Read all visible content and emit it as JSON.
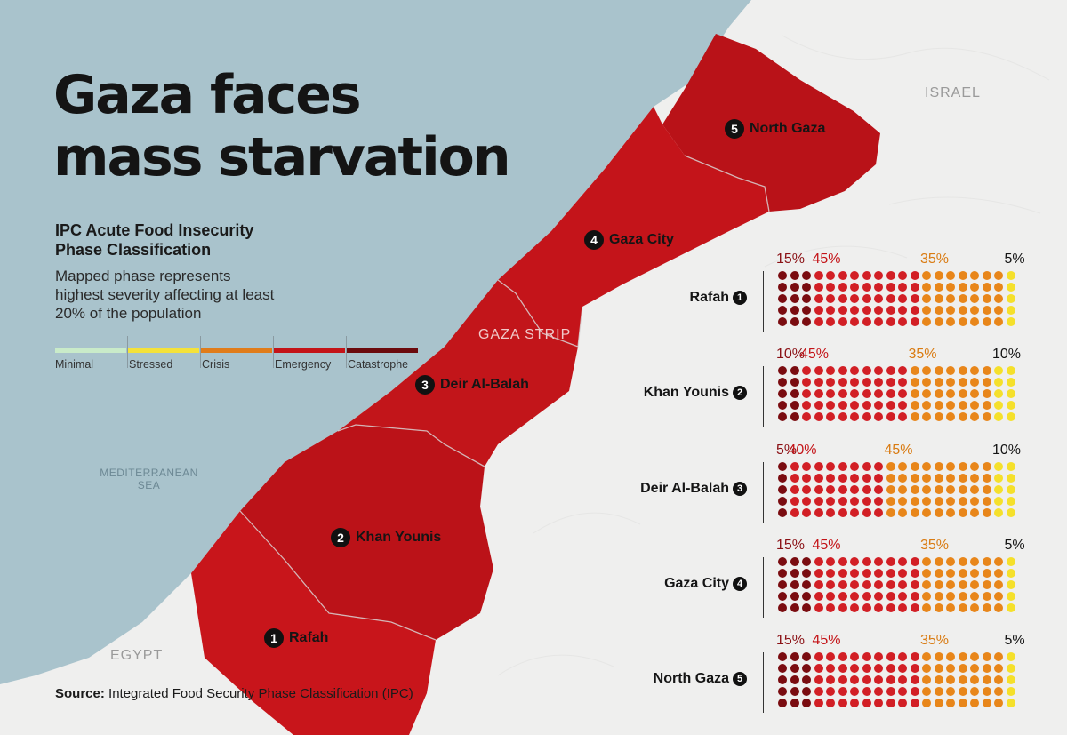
{
  "title_lines": [
    "Gaza faces",
    "mass starvation"
  ],
  "legend": {
    "title": "IPC Acute Food Insecurity Phase Classification",
    "description": "Mapped phase represents highest severity affecting at least 20% of the population",
    "phases": [
      {
        "label": "Minimal",
        "color": "#c9ebc9"
      },
      {
        "label": "Stressed",
        "color": "#f4e23a"
      },
      {
        "label": "Crisis",
        "color": "#e07c1a"
      },
      {
        "label": "Emergency",
        "color": "#c41418"
      },
      {
        "label": "Catastrophe",
        "color": "#6b0a0d"
      }
    ]
  },
  "places": {
    "israel": "ISRAEL",
    "egypt": "EGYPT",
    "sea": "MEDITERRANEAN SEA",
    "strip": "GAZA STRIP"
  },
  "governorates": [
    {
      "num": "1",
      "name": "Rafah"
    },
    {
      "num": "2",
      "name": "Khan Younis"
    },
    {
      "num": "3",
      "name": "Deir Al-Balah"
    },
    {
      "num": "4",
      "name": "Gaza City"
    },
    {
      "num": "5",
      "name": "North Gaza"
    }
  ],
  "colors": {
    "sea": "#a9c3cc",
    "land": "#efefee",
    "strip": "#c4141a",
    "catastrophe_dot": "#7a0c10",
    "emergency_dot": "#d21f25",
    "crisis_dot": "#e8861a",
    "stressed_dot": "#f5e02b"
  },
  "chart_data": {
    "type": "waffle",
    "units_per_region": 100,
    "phases": [
      "Catastrophe",
      "Emergency",
      "Crisis",
      "Stressed"
    ],
    "regions": [
      {
        "num": "1",
        "name": "Rafah",
        "pcts": [
          15,
          45,
          35,
          5
        ],
        "labels": [
          "15%",
          "45%",
          "35%",
          "5%"
        ]
      },
      {
        "num": "2",
        "name": "Khan Younis",
        "pcts": [
          10,
          45,
          35,
          10
        ],
        "labels": [
          "10%",
          "45%",
          "35%",
          "10%"
        ]
      },
      {
        "num": "3",
        "name": "Deir Al-Balah",
        "pcts": [
          5,
          40,
          45,
          10
        ],
        "labels": [
          "5%",
          "40%",
          "45%",
          "10%"
        ]
      },
      {
        "num": "4",
        "name": "Gaza City",
        "pcts": [
          15,
          45,
          35,
          5
        ],
        "labels": [
          "15%",
          "45%",
          "35%",
          "5%"
        ]
      },
      {
        "num": "5",
        "name": "North Gaza",
        "pcts": [
          15,
          45,
          35,
          5
        ],
        "labels": [
          "15%",
          "45%",
          "35%",
          "5%"
        ]
      }
    ]
  },
  "source": {
    "label": "Source:",
    "text": "Integrated Food Security Phase Classification (IPC)"
  }
}
